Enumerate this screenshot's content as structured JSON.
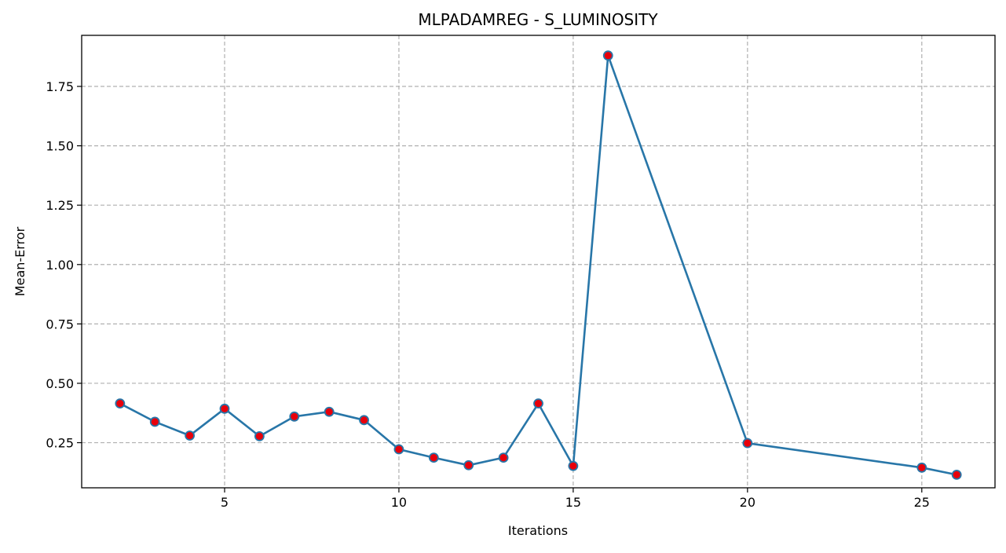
{
  "chart_data": {
    "type": "line",
    "title": "MLPADAMREG - S_LUMINOSITY",
    "xlabel": "Iterations",
    "ylabel": "Mean-Error",
    "xlim": [
      0.9,
      27.1
    ],
    "ylim": [
      0.06,
      1.965
    ],
    "x_ticks": [
      5,
      10,
      15,
      20,
      25
    ],
    "x_tick_labels": [
      "5",
      "10",
      "15",
      "20",
      "25"
    ],
    "y_ticks": [
      0.25,
      0.5,
      0.75,
      1.0,
      1.25,
      1.5,
      1.75
    ],
    "y_tick_labels": [
      "0.25",
      "0.50",
      "0.75",
      "1.00",
      "1.25",
      "1.50",
      "1.75"
    ],
    "grid": true,
    "legend": "none",
    "series": [
      {
        "x": [
          2,
          3,
          4,
          5,
          6,
          7,
          8,
          9,
          10,
          11,
          12,
          13,
          14,
          15,
          16,
          20,
          25,
          26
        ],
        "values": [
          0.415,
          0.338,
          0.28,
          0.393,
          0.277,
          0.36,
          0.38,
          0.345,
          0.222,
          0.187,
          0.155,
          0.187,
          0.415,
          0.152,
          1.88,
          0.248,
          0.145,
          0.115
        ],
        "line_color": "#2876a8",
        "marker_face": "#e8000b",
        "marker_edge": "#2876a8"
      }
    ]
  }
}
